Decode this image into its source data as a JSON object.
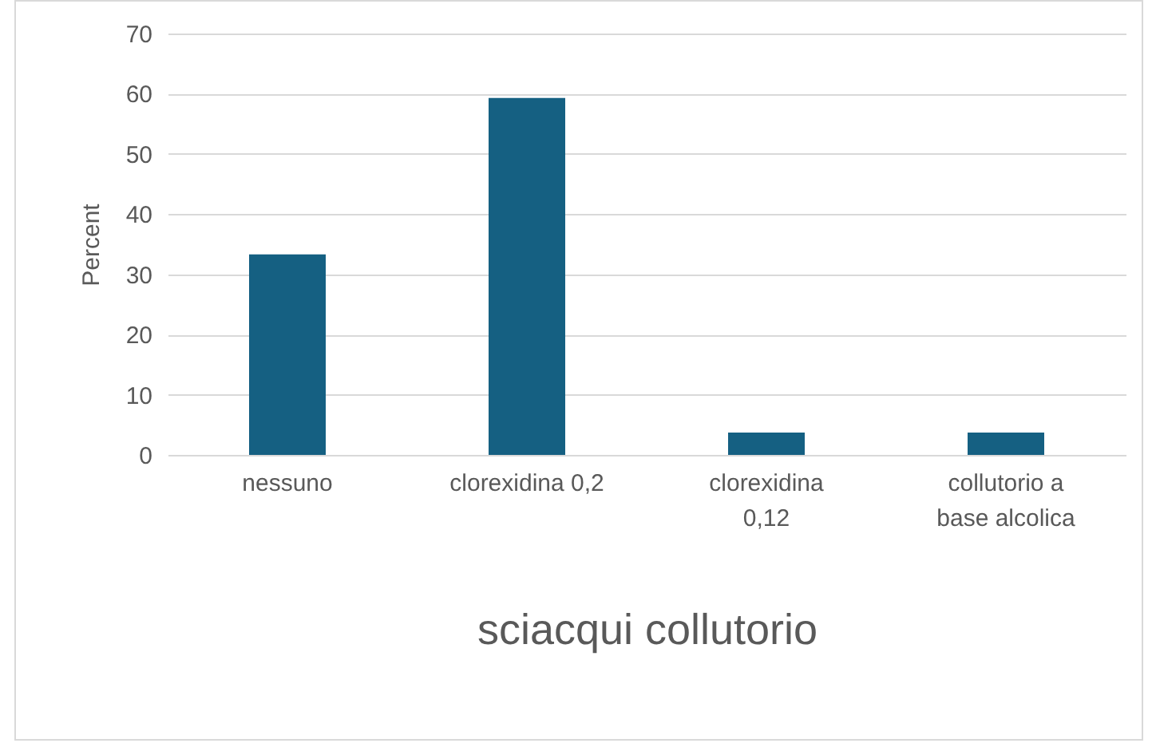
{
  "chart_data": {
    "type": "bar",
    "xlabel": "sciacqui collutorio",
    "ylabel": "Percent",
    "categories": [
      "nessuno",
      "clorexidina 0,2",
      "clorexidina 0,12",
      "collutorio a base alcolica"
    ],
    "values": [
      33.3,
      59.3,
      3.7,
      3.7
    ],
    "color": "#156082",
    "ylim": [
      0,
      70
    ],
    "yticks": [
      0,
      10,
      20,
      30,
      40,
      50,
      60,
      70
    ],
    "grid": "y"
  }
}
